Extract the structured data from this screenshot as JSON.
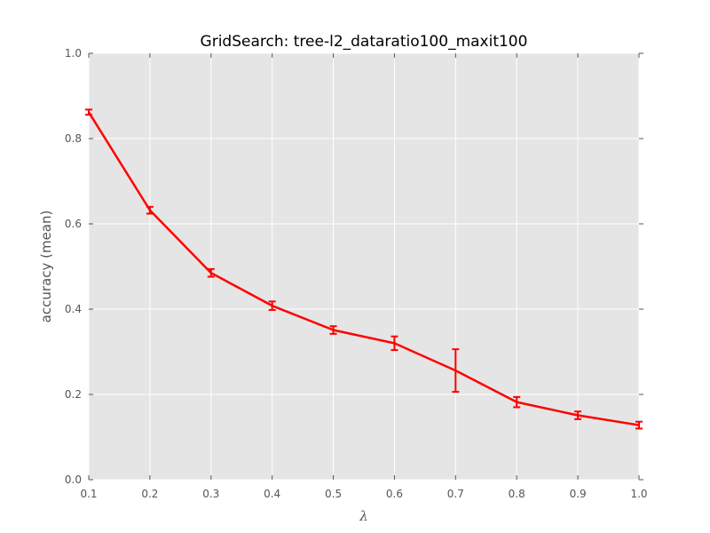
{
  "chart_data": {
    "type": "line",
    "title": "GridSearch: tree-l2_dataratio100_maxit100",
    "xlabel": "λ",
    "ylabel": "accuracy (mean)",
    "xlim": [
      0.1,
      1.0
    ],
    "ylim": [
      0.0,
      1.0
    ],
    "grid": true,
    "x": [
      0.1,
      0.2,
      0.3,
      0.4,
      0.5,
      0.6,
      0.7,
      0.8,
      0.9,
      1.0
    ],
    "x_tick_labels": [
      "0.1",
      "0.2",
      "0.3",
      "0.4",
      "0.5",
      "0.6",
      "0.7",
      "0.8",
      "0.9",
      "1.0"
    ],
    "y_ticks": [
      0.0,
      0.2,
      0.4,
      0.6,
      0.8,
      1.0
    ],
    "y_tick_labels": [
      "0.0",
      "0.2",
      "0.4",
      "0.6",
      "0.8",
      "1.0"
    ],
    "series": [
      {
        "color": "#ff0000",
        "values": [
          0.862,
          0.632,
          0.485,
          0.408,
          0.351,
          0.32,
          0.256,
          0.182,
          0.151,
          0.128
        ],
        "errors": [
          0.006,
          0.008,
          0.009,
          0.01,
          0.009,
          0.016,
          0.05,
          0.012,
          0.009,
          0.008
        ]
      }
    ],
    "colors": {
      "plot_background": "#e5e5e5",
      "grid": "#ffffff",
      "tick_text": "#555555"
    }
  }
}
